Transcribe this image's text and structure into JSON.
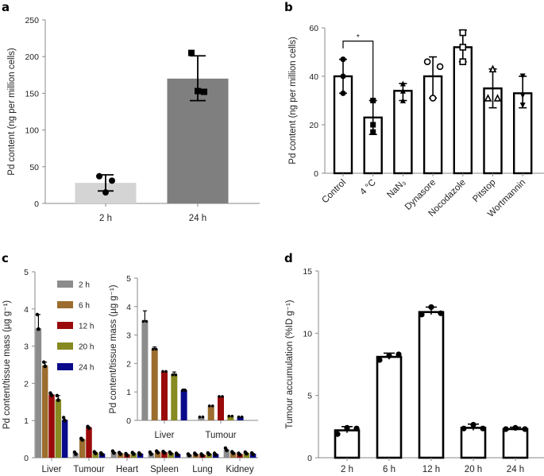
{
  "colors": {
    "axis": "#8a8a8a",
    "ink": "#000000",
    "a_2h": "#d4d4d4",
    "a_24h": "#7f7f7f",
    "c_2h": "#8c8c8c",
    "c_6h": "#9c6d2e",
    "c_12h": "#9a0a0a",
    "c_20h": "#868a21",
    "c_24h": "#0a0a8a"
  },
  "chart_data": [
    {
      "panel": "a",
      "type": "bar",
      "title": "",
      "xlabel": "",
      "ylabel": "Pd content (ng per million cells)",
      "ylim": [
        0,
        250
      ],
      "yticks": [
        0,
        50,
        100,
        150,
        200,
        250
      ],
      "categories": [
        "2 h",
        "24 h"
      ],
      "values": [
        28,
        170
      ],
      "error_low": [
        17,
        140
      ],
      "error_high": [
        39,
        201
      ],
      "points": [
        [
          37,
          31,
          15
        ],
        [
          205,
          152,
          153
        ]
      ],
      "markers": [
        "circle",
        "square"
      ]
    },
    {
      "panel": "b",
      "type": "bar",
      "title": "",
      "xlabel": "",
      "ylabel": "Pd content (ng per million cells)",
      "ylim": [
        0,
        60
      ],
      "yticks": [
        0,
        20,
        40,
        60
      ],
      "categories": [
        "Control",
        "4 °C",
        "NaN3",
        "Dynasore",
        "Nocodazole",
        "Pitstop",
        "Wortmannin"
      ],
      "values": [
        40,
        23,
        34,
        40,
        52,
        35,
        33
      ],
      "error_low": [
        33,
        16,
        30,
        31,
        46,
        27,
        27
      ],
      "error_high": [
        47,
        30,
        37,
        48,
        59,
        43,
        40
      ],
      "points": [
        [
          47,
          40,
          33
        ],
        [
          30,
          20,
          17
        ],
        [
          37,
          34,
          30
        ],
        [
          46,
          44,
          31
        ],
        [
          58,
          52,
          46
        ],
        [
          43,
          31,
          31
        ],
        [
          40,
          32,
          28
        ]
      ],
      "markers": [
        "circle",
        "square",
        "triangle-up",
        "open-circle",
        "open-square",
        "open-triangle",
        "triangle-down"
      ],
      "annotations": [
        {
          "text": "*",
          "between": [
            "Control",
            "4 °C"
          ]
        }
      ]
    },
    {
      "panel": "c",
      "type": "bar",
      "title": "",
      "xlabel": "",
      "ylabel": "Pd content/tissue mass (µg g⁻¹)",
      "ylim": [
        0,
        5
      ],
      "yticks": [
        0,
        1,
        2,
        3,
        4,
        5
      ],
      "legend": "top-left",
      "categories": [
        "Liver",
        "Tumour",
        "Heart",
        "Spleen",
        "Lung",
        "Kidney"
      ],
      "series": [
        {
          "name": "2 h",
          "values": [
            3.48,
            0.12,
            0.15,
            0.12,
            0.08,
            0.22
          ]
        },
        {
          "name": "6 h",
          "values": [
            2.48,
            0.5,
            0.12,
            0.16,
            0.1,
            0.14
          ]
        },
        {
          "name": "12 h",
          "values": [
            1.7,
            0.82,
            0.09,
            0.15,
            0.08,
            0.1
          ]
        },
        {
          "name": "20 h",
          "values": [
            1.57,
            0.14,
            0.12,
            0.13,
            0.11,
            0.13
          ]
        },
        {
          "name": "24 h",
          "values": [
            1.02,
            0.11,
            0.11,
            0.1,
            0.1,
            0.11
          ]
        }
      ],
      "error_high": [
        [
          3.85,
          0.15,
          0.18,
          0.15,
          0.1,
          0.26
        ],
        [
          2.57,
          0.52,
          0.14,
          0.18,
          0.12,
          0.16
        ],
        [
          1.74,
          0.84,
          0.11,
          0.17,
          0.1,
          0.12
        ],
        [
          1.67,
          0.16,
          0.14,
          0.15,
          0.13,
          0.15
        ],
        [
          1.08,
          0.13,
          0.13,
          0.12,
          0.12,
          0.13
        ]
      ]
    },
    {
      "panel": "c-inset",
      "type": "bar",
      "title": "",
      "xlabel": "",
      "ylabel": "Pd content/tissue mass (µg g⁻¹)",
      "ylim": [
        0,
        5
      ],
      "yticks": [
        0,
        1,
        2,
        3,
        4,
        5
      ],
      "categories": [
        "Liver",
        "Tumour"
      ],
      "series": [
        {
          "name": "2 h",
          "values": [
            3.48,
            0.12
          ]
        },
        {
          "name": "6 h",
          "values": [
            2.5,
            0.51
          ]
        },
        {
          "name": "12 h",
          "values": [
            1.72,
            0.84
          ]
        },
        {
          "name": "20 h",
          "values": [
            1.6,
            0.15
          ]
        },
        {
          "name": "24 h",
          "values": [
            1.05,
            0.12
          ]
        }
      ],
      "error_high": [
        [
          3.85,
          0.15
        ],
        [
          2.58,
          0.53
        ],
        [
          1.75,
          0.86
        ],
        [
          1.7,
          0.17
        ],
        [
          1.1,
          0.13
        ]
      ]
    },
    {
      "panel": "d",
      "type": "bar",
      "title": "",
      "xlabel": "",
      "ylabel": "Tumour accumulation (%ID g⁻¹)",
      "ylim": [
        0,
        15
      ],
      "yticks": [
        0,
        5,
        10,
        15
      ],
      "categories": [
        "2 h",
        "6 h",
        "12 h",
        "20 h",
        "24 h"
      ],
      "values": [
        2.2,
        8.1,
        11.7,
        2.4,
        2.3
      ],
      "error_low": [
        2.0,
        7.9,
        11.5,
        2.2,
        2.2
      ],
      "error_high": [
        2.5,
        8.4,
        12.1,
        2.7,
        2.45
      ],
      "points": [
        [
          1.9,
          2.4,
          2.35
        ],
        [
          7.85,
          8.2,
          8.3
        ],
        [
          11.5,
          12.1,
          11.6
        ],
        [
          2.35,
          2.65,
          2.35
        ],
        [
          2.3,
          2.4,
          2.3
        ]
      ]
    }
  ],
  "panel_labels": [
    "a",
    "b",
    "c",
    "d"
  ]
}
